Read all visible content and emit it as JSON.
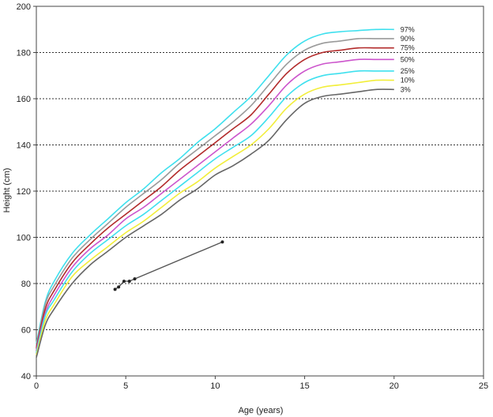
{
  "chart_data": {
    "type": "line",
    "title": "",
    "xlabel": "Age (years)",
    "ylabel": "Height (cm)",
    "xlim": [
      0,
      25
    ],
    "ylim": [
      40,
      200
    ],
    "x_ticks": [
      0,
      5,
      10,
      15,
      20,
      25
    ],
    "y_ticks": [
      40,
      60,
      80,
      100,
      120,
      140,
      160,
      180,
      200
    ],
    "grid": "horizontal dotted",
    "colors": {
      "97%": "#3fe0ee",
      "90%": "#9a9a9a",
      "75%": "#b22a2a",
      "50%": "#cc55cc",
      "25%": "#3fe0ee",
      "10%": "#f2ee3a",
      "3%": "#666666",
      "patient": "#555555"
    },
    "series": [
      {
        "name": "97%",
        "x": [
          0,
          0.5,
          1,
          2,
          3,
          4,
          5,
          6,
          7,
          8,
          9,
          10,
          11,
          12,
          13,
          14,
          15,
          16,
          17,
          18,
          19,
          20
        ],
        "y": [
          54,
          72,
          81,
          93,
          101,
          108,
          115,
          121,
          128,
          134,
          141,
          147,
          154,
          161,
          170,
          179,
          185,
          188,
          189,
          189.5,
          190,
          190
        ]
      },
      {
        "name": "90%",
        "x": [
          0,
          0.5,
          1,
          2,
          3,
          4,
          5,
          6,
          7,
          8,
          9,
          10,
          11,
          12,
          13,
          14,
          15,
          16,
          17,
          18,
          19,
          20
        ],
        "y": [
          53,
          71,
          79,
          91,
          99,
          106,
          113,
          119,
          125,
          132,
          138,
          144,
          150,
          157,
          166,
          175,
          181,
          184,
          185,
          186,
          186,
          186
        ]
      },
      {
        "name": "75%",
        "x": [
          0,
          0.5,
          1,
          2,
          3,
          4,
          5,
          6,
          7,
          8,
          9,
          10,
          11,
          12,
          13,
          14,
          15,
          16,
          17,
          18,
          19,
          20
        ],
        "y": [
          52,
          69,
          77,
          89,
          97,
          104,
          110,
          116,
          122,
          129,
          135,
          141,
          147,
          153,
          162,
          171,
          177,
          180,
          181,
          182,
          182,
          182
        ]
      },
      {
        "name": "50%",
        "x": [
          0,
          0.5,
          1,
          2,
          3,
          4,
          5,
          6,
          7,
          8,
          9,
          10,
          11,
          12,
          13,
          14,
          15,
          16,
          17,
          18,
          19,
          20
        ],
        "y": [
          51,
          67,
          75,
          87,
          95,
          101,
          108,
          113,
          119,
          125,
          131,
          137,
          143,
          149,
          157,
          166,
          172,
          175,
          176,
          177,
          177,
          177
        ]
      },
      {
        "name": "25%",
        "x": [
          0,
          0.5,
          1,
          2,
          3,
          4,
          5,
          6,
          7,
          8,
          9,
          10,
          11,
          12,
          13,
          14,
          15,
          16,
          17,
          18,
          19,
          20
        ],
        "y": [
          50,
          66,
          73,
          85,
          93,
          99,
          105,
          110,
          116,
          122,
          128,
          134,
          139,
          144,
          152,
          161,
          167,
          170,
          171,
          172,
          172,
          172
        ]
      },
      {
        "name": "10%",
        "x": [
          0,
          0.5,
          1,
          2,
          3,
          4,
          5,
          6,
          7,
          8,
          9,
          10,
          11,
          12,
          13,
          14,
          15,
          16,
          17,
          18,
          19,
          20
        ],
        "y": [
          49,
          64,
          71,
          83,
          90,
          96,
          102,
          107,
          113,
          119,
          124,
          130,
          135,
          140,
          147,
          156,
          162,
          165,
          166,
          167,
          168,
          168
        ]
      },
      {
        "name": "3%",
        "x": [
          0,
          0.5,
          1,
          2,
          3,
          4,
          5,
          6,
          7,
          8,
          9,
          10,
          11,
          12,
          13,
          14,
          15,
          16,
          17,
          18,
          19,
          20
        ],
        "y": [
          48,
          62,
          69,
          80,
          88,
          94,
          100,
          105,
          110,
          116,
          121,
          127,
          131,
          136,
          142,
          151,
          158,
          161,
          162,
          163,
          164,
          164
        ]
      }
    ],
    "patient": {
      "x": [
        4.4,
        4.6,
        4.9,
        5.2,
        5.5,
        10.4
      ],
      "y": [
        77.5,
        78.5,
        81,
        81,
        82,
        98
      ]
    }
  }
}
